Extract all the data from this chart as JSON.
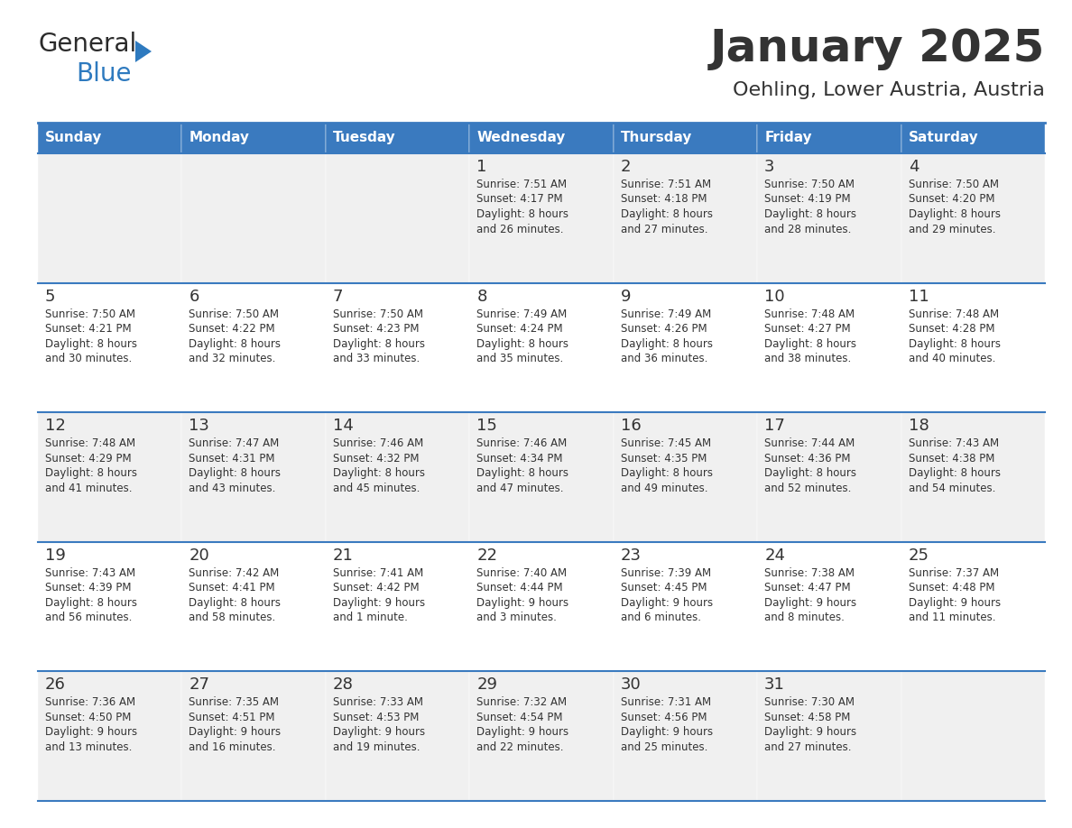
{
  "title": "January 2025",
  "subtitle": "Oehling, Lower Austria, Austria",
  "header_bg_color": "#3a7abf",
  "header_text_color": "#ffffff",
  "cell_bg_row0": "#f0f0f0",
  "cell_bg_row1": "#ffffff",
  "border_color": "#3a7abf",
  "text_color": "#333333",
  "days_of_week": [
    "Sunday",
    "Monday",
    "Tuesday",
    "Wednesday",
    "Thursday",
    "Friday",
    "Saturday"
  ],
  "calendar_data": [
    [
      null,
      null,
      null,
      {
        "day": 1,
        "sunrise": "7:51 AM",
        "sunset": "4:17 PM",
        "daylight_line1": "Daylight: 8 hours",
        "daylight_line2": "and 26 minutes."
      },
      {
        "day": 2,
        "sunrise": "7:51 AM",
        "sunset": "4:18 PM",
        "daylight_line1": "Daylight: 8 hours",
        "daylight_line2": "and 27 minutes."
      },
      {
        "day": 3,
        "sunrise": "7:50 AM",
        "sunset": "4:19 PM",
        "daylight_line1": "Daylight: 8 hours",
        "daylight_line2": "and 28 minutes."
      },
      {
        "day": 4,
        "sunrise": "7:50 AM",
        "sunset": "4:20 PM",
        "daylight_line1": "Daylight: 8 hours",
        "daylight_line2": "and 29 minutes."
      }
    ],
    [
      {
        "day": 5,
        "sunrise": "7:50 AM",
        "sunset": "4:21 PM",
        "daylight_line1": "Daylight: 8 hours",
        "daylight_line2": "and 30 minutes."
      },
      {
        "day": 6,
        "sunrise": "7:50 AM",
        "sunset": "4:22 PM",
        "daylight_line1": "Daylight: 8 hours",
        "daylight_line2": "and 32 minutes."
      },
      {
        "day": 7,
        "sunrise": "7:50 AM",
        "sunset": "4:23 PM",
        "daylight_line1": "Daylight: 8 hours",
        "daylight_line2": "and 33 minutes."
      },
      {
        "day": 8,
        "sunrise": "7:49 AM",
        "sunset": "4:24 PM",
        "daylight_line1": "Daylight: 8 hours",
        "daylight_line2": "and 35 minutes."
      },
      {
        "day": 9,
        "sunrise": "7:49 AM",
        "sunset": "4:26 PM",
        "daylight_line1": "Daylight: 8 hours",
        "daylight_line2": "and 36 minutes."
      },
      {
        "day": 10,
        "sunrise": "7:48 AM",
        "sunset": "4:27 PM",
        "daylight_line1": "Daylight: 8 hours",
        "daylight_line2": "and 38 minutes."
      },
      {
        "day": 11,
        "sunrise": "7:48 AM",
        "sunset": "4:28 PM",
        "daylight_line1": "Daylight: 8 hours",
        "daylight_line2": "and 40 minutes."
      }
    ],
    [
      {
        "day": 12,
        "sunrise": "7:48 AM",
        "sunset": "4:29 PM",
        "daylight_line1": "Daylight: 8 hours",
        "daylight_line2": "and 41 minutes."
      },
      {
        "day": 13,
        "sunrise": "7:47 AM",
        "sunset": "4:31 PM",
        "daylight_line1": "Daylight: 8 hours",
        "daylight_line2": "and 43 minutes."
      },
      {
        "day": 14,
        "sunrise": "7:46 AM",
        "sunset": "4:32 PM",
        "daylight_line1": "Daylight: 8 hours",
        "daylight_line2": "and 45 minutes."
      },
      {
        "day": 15,
        "sunrise": "7:46 AM",
        "sunset": "4:34 PM",
        "daylight_line1": "Daylight: 8 hours",
        "daylight_line2": "and 47 minutes."
      },
      {
        "day": 16,
        "sunrise": "7:45 AM",
        "sunset": "4:35 PM",
        "daylight_line1": "Daylight: 8 hours",
        "daylight_line2": "and 49 minutes."
      },
      {
        "day": 17,
        "sunrise": "7:44 AM",
        "sunset": "4:36 PM",
        "daylight_line1": "Daylight: 8 hours",
        "daylight_line2": "and 52 minutes."
      },
      {
        "day": 18,
        "sunrise": "7:43 AM",
        "sunset": "4:38 PM",
        "daylight_line1": "Daylight: 8 hours",
        "daylight_line2": "and 54 minutes."
      }
    ],
    [
      {
        "day": 19,
        "sunrise": "7:43 AM",
        "sunset": "4:39 PM",
        "daylight_line1": "Daylight: 8 hours",
        "daylight_line2": "and 56 minutes."
      },
      {
        "day": 20,
        "sunrise": "7:42 AM",
        "sunset": "4:41 PM",
        "daylight_line1": "Daylight: 8 hours",
        "daylight_line2": "and 58 minutes."
      },
      {
        "day": 21,
        "sunrise": "7:41 AM",
        "sunset": "4:42 PM",
        "daylight_line1": "Daylight: 9 hours",
        "daylight_line2": "and 1 minute."
      },
      {
        "day": 22,
        "sunrise": "7:40 AM",
        "sunset": "4:44 PM",
        "daylight_line1": "Daylight: 9 hours",
        "daylight_line2": "and 3 minutes."
      },
      {
        "day": 23,
        "sunrise": "7:39 AM",
        "sunset": "4:45 PM",
        "daylight_line1": "Daylight: 9 hours",
        "daylight_line2": "and 6 minutes."
      },
      {
        "day": 24,
        "sunrise": "7:38 AM",
        "sunset": "4:47 PM",
        "daylight_line1": "Daylight: 9 hours",
        "daylight_line2": "and 8 minutes."
      },
      {
        "day": 25,
        "sunrise": "7:37 AM",
        "sunset": "4:48 PM",
        "daylight_line1": "Daylight: 9 hours",
        "daylight_line2": "and 11 minutes."
      }
    ],
    [
      {
        "day": 26,
        "sunrise": "7:36 AM",
        "sunset": "4:50 PM",
        "daylight_line1": "Daylight: 9 hours",
        "daylight_line2": "and 13 minutes."
      },
      {
        "day": 27,
        "sunrise": "7:35 AM",
        "sunset": "4:51 PM",
        "daylight_line1": "Daylight: 9 hours",
        "daylight_line2": "and 16 minutes."
      },
      {
        "day": 28,
        "sunrise": "7:33 AM",
        "sunset": "4:53 PM",
        "daylight_line1": "Daylight: 9 hours",
        "daylight_line2": "and 19 minutes."
      },
      {
        "day": 29,
        "sunrise": "7:32 AM",
        "sunset": "4:54 PM",
        "daylight_line1": "Daylight: 9 hours",
        "daylight_line2": "and 22 minutes."
      },
      {
        "day": 30,
        "sunrise": "7:31 AM",
        "sunset": "4:56 PM",
        "daylight_line1": "Daylight: 9 hours",
        "daylight_line2": "and 25 minutes."
      },
      {
        "day": 31,
        "sunrise": "7:30 AM",
        "sunset": "4:58 PM",
        "daylight_line1": "Daylight: 9 hours",
        "daylight_line2": "and 27 minutes."
      },
      null
    ]
  ]
}
